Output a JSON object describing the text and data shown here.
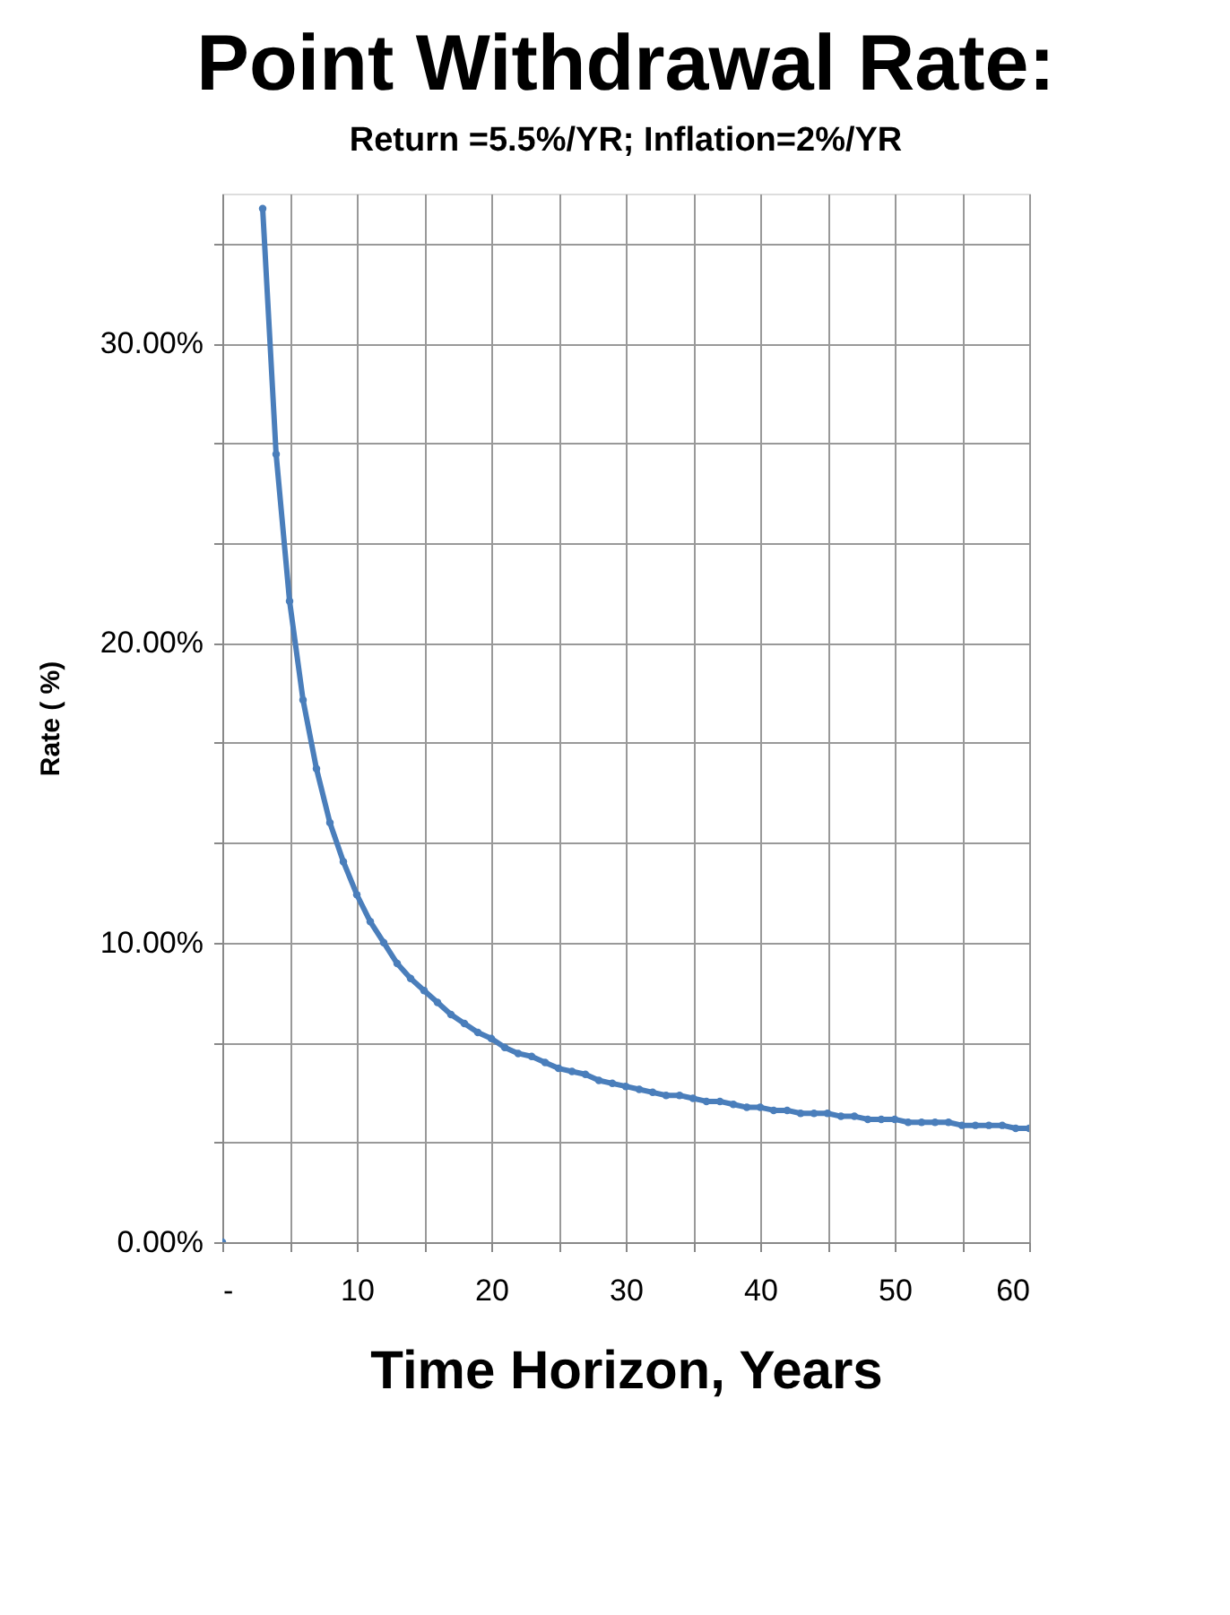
{
  "chart_data": {
    "type": "line",
    "title": "Point Withdrawal Rate:",
    "subtitle": "Return =5.5%/YR; Inflation=2%/YR",
    "xlabel": "Time Horizon,  Years",
    "ylabel": "Rate ( %)",
    "x": [
      0,
      1,
      2,
      3,
      4,
      5,
      6,
      7,
      8,
      9,
      10,
      11,
      12,
      13,
      14,
      15,
      16,
      17,
      18,
      19,
      20,
      21,
      22,
      23,
      24,
      25,
      26,
      27,
      28,
      29,
      30,
      31,
      32,
      33,
      34,
      35,
      36,
      37,
      38,
      39,
      40,
      41,
      42,
      43,
      44,
      45,
      46,
      47,
      48,
      49,
      50,
      51,
      52,
      53,
      54,
      55,
      56,
      57,
      58,
      59,
      60
    ],
    "series": [
      {
        "color": "#4a7ebb",
        "values": [
          0,
          null,
          null,
          34.5,
          26.3,
          21.4,
          18.1,
          15.8,
          14.0,
          12.7,
          11.6,
          10.7,
          10.0,
          9.3,
          8.8,
          8.4,
          8.0,
          7.6,
          7.3,
          7.0,
          6.8,
          6.5,
          6.3,
          6.2,
          6.0,
          5.8,
          5.7,
          5.6,
          5.4,
          5.3,
          5.2,
          5.1,
          5.0,
          4.9,
          4.9,
          4.8,
          4.7,
          4.7,
          4.6,
          4.5,
          4.5,
          4.4,
          4.4,
          4.3,
          4.3,
          4.3,
          4.2,
          4.2,
          4.1,
          4.1,
          4.1,
          4.0,
          4.0,
          4.0,
          4.0,
          3.9,
          3.9,
          3.9,
          3.9,
          3.8,
          3.8
        ]
      }
    ],
    "xlim": [
      0,
      60
    ],
    "xticks": [
      {
        "value": 0,
        "label": "-"
      },
      {
        "value": 5,
        "label": null
      },
      10,
      {
        "value": 15,
        "label": null
      },
      20,
      {
        "value": 25,
        "label": null
      },
      30,
      {
        "value": 35,
        "label": null
      },
      40,
      {
        "value": 45,
        "label": null
      },
      50,
      {
        "value": 55,
        "label": null
      },
      60
    ],
    "ylim": [
      0,
      35
    ],
    "yticks": [
      {
        "value": 0,
        "label": "0.00%"
      },
      {
        "value": 3.33,
        "label": null
      },
      {
        "value": 6.67,
        "label": null
      },
      {
        "value": 10,
        "label": "10.00%"
      },
      {
        "value": 13.33,
        "label": null
      },
      {
        "value": 16.67,
        "label": null
      },
      {
        "value": 20,
        "label": "20.00%"
      },
      {
        "value": 23.33,
        "label": null
      },
      {
        "value": 26.67,
        "label": null
      },
      {
        "value": 30,
        "label": "30.00%"
      },
      {
        "value": 33.33,
        "label": null
      }
    ],
    "grid": true,
    "marker": "circle",
    "line_style": "solid",
    "legend": false
  }
}
